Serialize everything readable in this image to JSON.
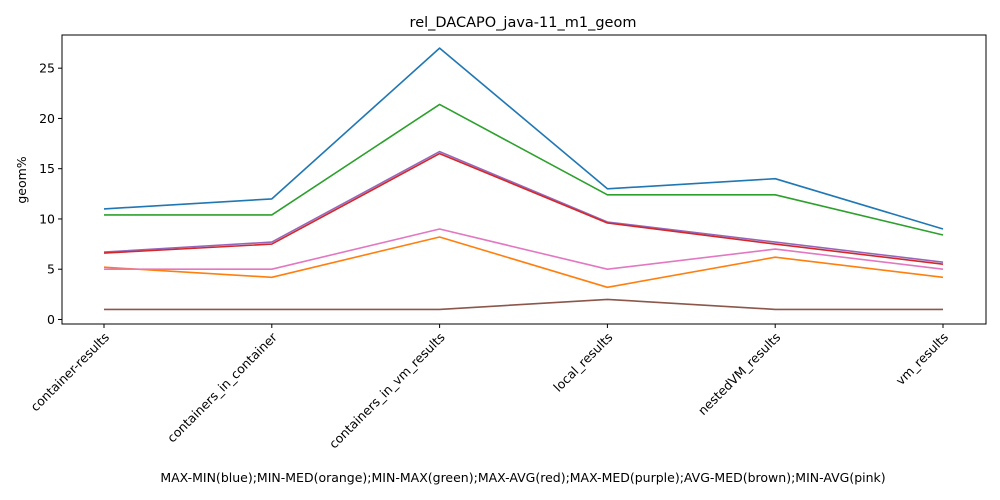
{
  "chart_data": {
    "type": "line",
    "title": "rel_DACAPO_java-11_m1_geom",
    "xlabel": "MAX-MIN(blue);MIN-MED(orange);MIN-MAX(green);MAX-AVG(red);MAX-MED(purple);AVG-MED(brown);MIN-AVG(pink)",
    "ylabel": "geom%",
    "categories": [
      "container-results",
      "containers_in_container",
      "containers_in_vm_results",
      "local_results",
      "nestedVM_results",
      "vm_results"
    ],
    "ylim": [
      -0.45,
      28.3
    ],
    "yticks": [
      0,
      5,
      10,
      15,
      20,
      25
    ],
    "grid": false,
    "legend": "none",
    "series": [
      {
        "color": "#1f77b4",
        "values": [
          11.0,
          12.0,
          27.0,
          13.0,
          14.0,
          9.0
        ]
      },
      {
        "color": "#ff7f0e",
        "values": [
          5.2,
          4.2,
          8.2,
          3.2,
          6.2,
          4.2
        ]
      },
      {
        "color": "#2ca02c",
        "values": [
          10.4,
          10.4,
          21.4,
          12.4,
          12.4,
          8.4
        ]
      },
      {
        "color": "#9467bd",
        "values": [
          6.7,
          7.7,
          16.7,
          9.7,
          7.7,
          5.7
        ]
      },
      {
        "color": "#d62728",
        "values": [
          6.6,
          7.5,
          16.5,
          9.6,
          7.5,
          5.5
        ]
      },
      {
        "color": "#8c564b",
        "values": [
          1.0,
          1.0,
          1.0,
          2.0,
          1.0,
          1.0
        ]
      },
      {
        "color": "#e377c2",
        "values": [
          5.0,
          5.0,
          9.0,
          5.0,
          7.0,
          5.0
        ]
      }
    ]
  }
}
